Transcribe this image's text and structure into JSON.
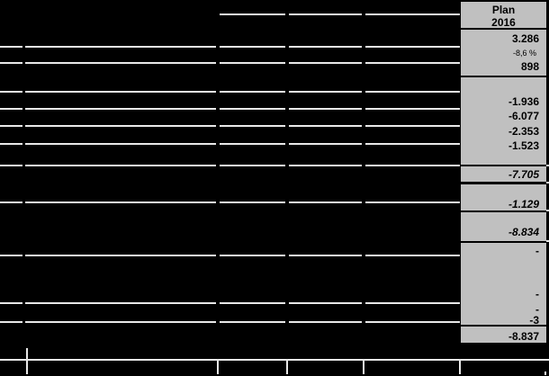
{
  "plan_column": {
    "header": {
      "line1": "Plan",
      "line2": "2016"
    },
    "values": [
      {
        "text": "3.286"
      },
      {
        "text": "-8,6 %"
      },
      {
        "text": "898"
      },
      {
        "text": "-1.936"
      },
      {
        "text": "-6.077"
      },
      {
        "text": "-2.353"
      },
      {
        "text": "-1.523"
      },
      {
        "text": "-7.705"
      },
      {
        "text": "-1.129"
      },
      {
        "text": "-8.834"
      },
      {
        "text": "-"
      },
      {
        "text": "-"
      },
      {
        "text": "-"
      },
      {
        "text": "-3"
      },
      {
        "text": "-8.837"
      }
    ]
  },
  "colors": {
    "background": "#000000",
    "column_bg": "#c0c0c0",
    "line_color": "#e8e8e8",
    "text": "#000000"
  }
}
